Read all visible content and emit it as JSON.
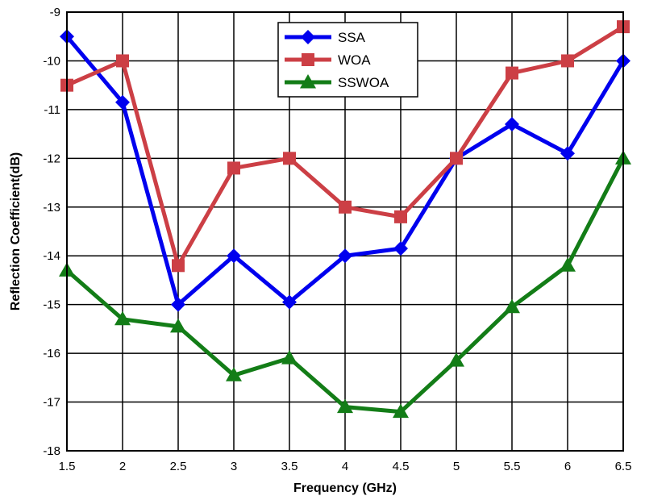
{
  "chart_data": {
    "type": "line",
    "title": "",
    "xlabel": "Frequency (GHz)",
    "ylabel": "Reflection Coefficient(dB)",
    "x": [
      1.5,
      2,
      2.5,
      3,
      3.5,
      4,
      4.5,
      5,
      5.5,
      6,
      6.5
    ],
    "xlim": [
      1.5,
      6.5
    ],
    "ylim": [
      -18,
      -9
    ],
    "xticks": [
      "1.5",
      "2",
      "2.5",
      "3",
      "3.5",
      "4",
      "4.5",
      "5",
      "5.5",
      "6",
      "6.5"
    ],
    "yticks": [
      "-9",
      "-10",
      "-11",
      "-12",
      "-13",
      "-14",
      "-15",
      "-16",
      "-17",
      "-18"
    ],
    "grid": true,
    "legend_position": "top-center",
    "series": [
      {
        "name": "SSA",
        "color": "#0000ee",
        "marker": "diamond",
        "values": [
          -9.5,
          -10.85,
          -15.0,
          -14.0,
          -14.95,
          -14.0,
          -13.85,
          -12.0,
          -11.3,
          -11.9,
          -10.0
        ]
      },
      {
        "name": "WOA",
        "color": "#cc3f45",
        "marker": "square",
        "values": [
          -10.5,
          -10.0,
          -14.2,
          -12.2,
          -12.0,
          -13.0,
          -13.2,
          -12.0,
          -10.25,
          -10.0,
          -9.3
        ]
      },
      {
        "name": "SSWOA",
        "color": "#137d17",
        "marker": "triangle",
        "values": [
          -14.3,
          -15.3,
          -15.45,
          -16.45,
          -16.1,
          -17.1,
          -17.2,
          -16.15,
          -15.05,
          -14.2,
          -12.0
        ]
      }
    ]
  }
}
